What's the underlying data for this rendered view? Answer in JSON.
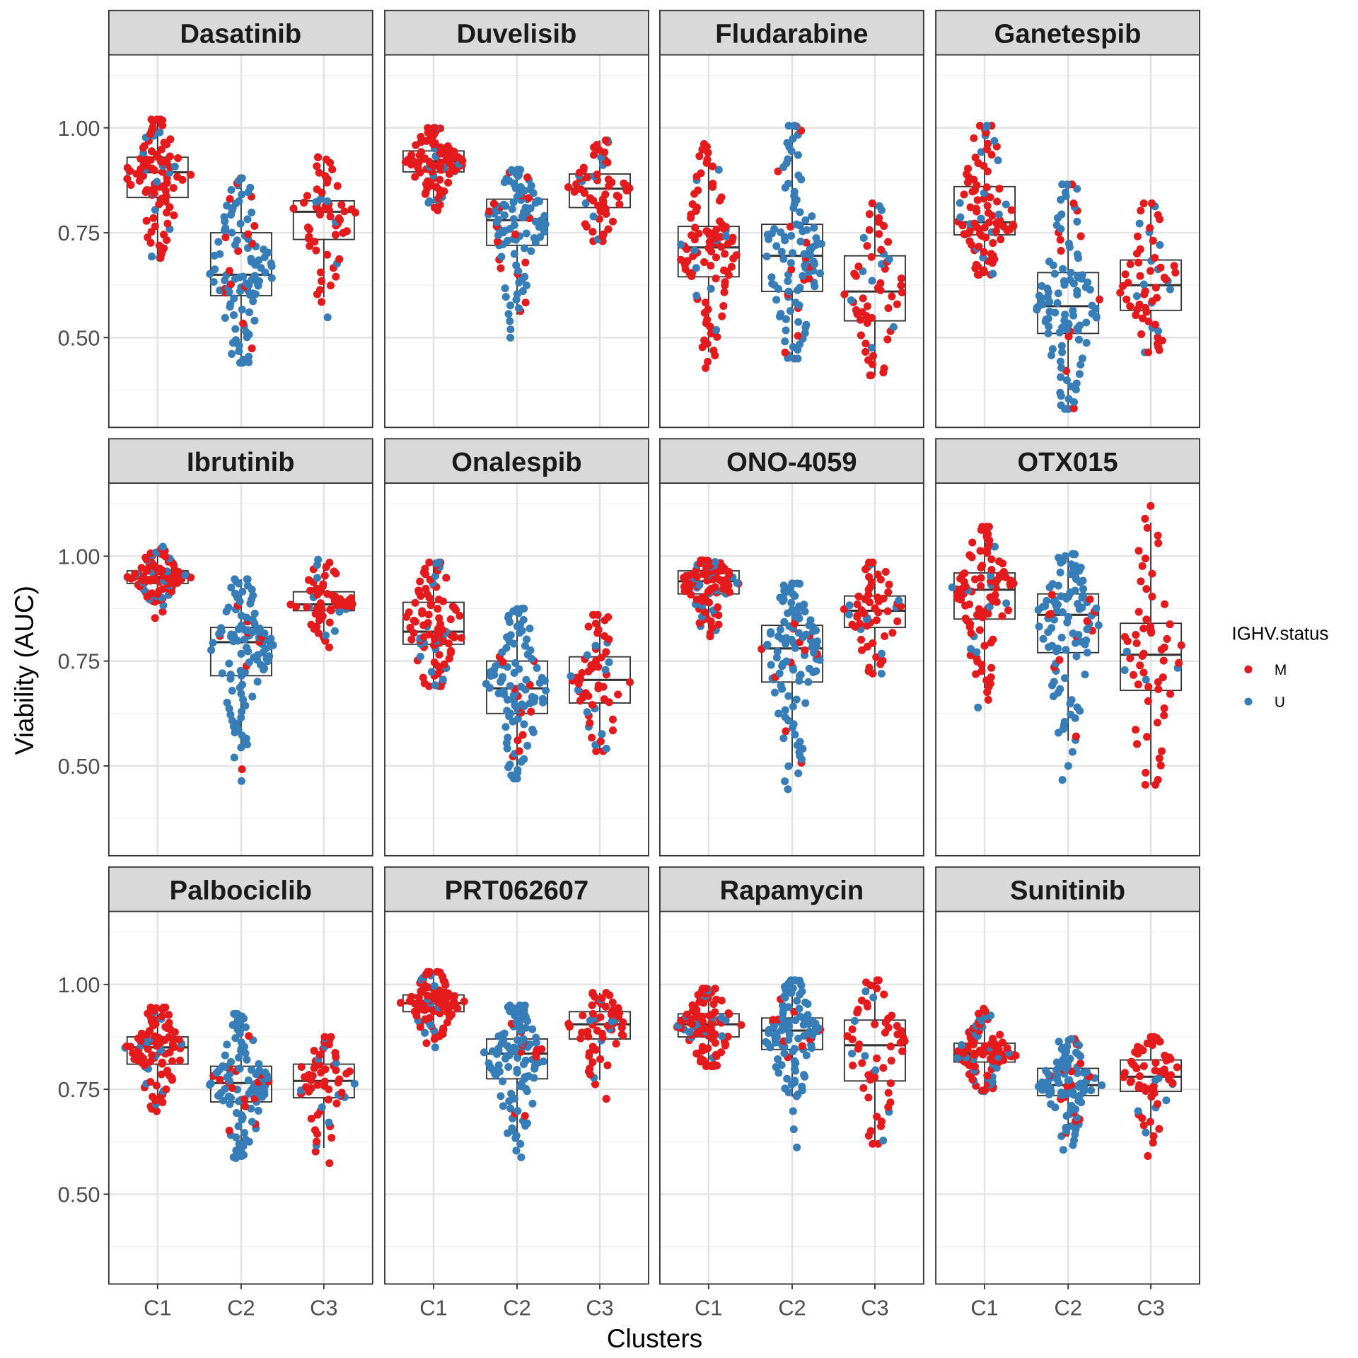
{
  "chart_data": {
    "type": "box+beeswarm (faceted)",
    "xlabel": "Clusters",
    "ylabel": "Viability (AUC)",
    "categories": [
      "C1",
      "C2",
      "C3"
    ],
    "ylim": [
      0.286,
      1.174
    ],
    "y_ticks": [
      0.5,
      0.75,
      1.0
    ],
    "y_tick_labels": [
      "0.50",
      "0.75",
      "1.00"
    ],
    "grid": true,
    "legend": {
      "title": "IGHV.status",
      "placement": "right",
      "entries": [
        {
          "label": "M",
          "color": "#E41A1C"
        },
        {
          "label": "U",
          "color": "#377EB8"
        }
      ]
    },
    "approx_points_per_cluster": [
      100,
      110,
      60
    ],
    "approx_fraction_M_per_cluster": [
      0.85,
      0.12,
      0.85
    ],
    "facets": [
      {
        "title": "Dasatinib",
        "stats": [
          [
            0.69,
            0.834,
            0.894,
            0.93,
            1.02
          ],
          [
            0.44,
            0.6,
            0.65,
            0.75,
            0.88
          ],
          [
            0.53,
            0.734,
            0.8,
            0.826,
            0.93
          ]
        ]
      },
      {
        "title": "Duvelisib",
        "stats": [
          [
            0.8,
            0.895,
            0.92,
            0.945,
            1.0
          ],
          [
            0.49,
            0.72,
            0.78,
            0.83,
            0.9
          ],
          [
            0.73,
            0.81,
            0.855,
            0.89,
            0.97
          ]
        ]
      },
      {
        "title": "Fludarabine",
        "stats": [
          [
            0.42,
            0.645,
            0.715,
            0.765,
            0.965
          ],
          [
            0.45,
            0.61,
            0.695,
            0.77,
            1.005
          ],
          [
            0.41,
            0.54,
            0.61,
            0.695,
            0.82
          ]
        ]
      },
      {
        "title": "Ganetespib",
        "stats": [
          [
            0.65,
            0.745,
            0.775,
            0.86,
            1.005
          ],
          [
            0.33,
            0.51,
            0.575,
            0.655,
            0.865
          ],
          [
            0.465,
            0.565,
            0.625,
            0.685,
            0.82
          ]
        ]
      },
      {
        "title": "Ibrutinib",
        "stats": [
          [
            0.845,
            0.935,
            0.95,
            0.965,
            1.025
          ],
          [
            0.45,
            0.715,
            0.795,
            0.83,
            0.945
          ],
          [
            0.775,
            0.87,
            0.885,
            0.915,
            0.995
          ]
        ]
      },
      {
        "title": "Onalespib",
        "stats": [
          [
            0.69,
            0.79,
            0.82,
            0.89,
            0.985
          ],
          [
            0.47,
            0.625,
            0.685,
            0.75,
            0.875
          ],
          [
            0.535,
            0.65,
            0.705,
            0.76,
            0.86
          ]
        ]
      },
      {
        "title": "ONO-4059",
        "stats": [
          [
            0.805,
            0.91,
            0.94,
            0.965,
            0.99
          ],
          [
            0.435,
            0.7,
            0.78,
            0.835,
            0.935
          ],
          [
            0.72,
            0.83,
            0.87,
            0.905,
            0.985
          ]
        ]
      },
      {
        "title": "OTX015",
        "stats": [
          [
            0.63,
            0.85,
            0.92,
            0.96,
            1.07
          ],
          [
            0.45,
            0.77,
            0.86,
            0.91,
            1.005
          ],
          [
            0.455,
            0.68,
            0.765,
            0.84,
            1.135
          ]
        ]
      },
      {
        "title": "Palbociclib",
        "stats": [
          [
            0.695,
            0.81,
            0.85,
            0.875,
            0.945
          ],
          [
            0.585,
            0.72,
            0.765,
            0.805,
            0.93
          ],
          [
            0.56,
            0.73,
            0.77,
            0.81,
            0.875
          ]
        ]
      },
      {
        "title": "PRT062607",
        "stats": [
          [
            0.845,
            0.935,
            0.955,
            0.975,
            1.03
          ],
          [
            0.58,
            0.775,
            0.835,
            0.87,
            0.95
          ],
          [
            0.71,
            0.87,
            0.905,
            0.935,
            0.98
          ]
        ]
      },
      {
        "title": "Rapamycin",
        "stats": [
          [
            0.805,
            0.875,
            0.905,
            0.93,
            0.99
          ],
          [
            0.59,
            0.845,
            0.89,
            0.92,
            1.01
          ],
          [
            0.62,
            0.77,
            0.855,
            0.915,
            1.01
          ]
        ]
      },
      {
        "title": "Sunitinib",
        "stats": [
          [
            0.745,
            0.815,
            0.835,
            0.86,
            0.945
          ],
          [
            0.6,
            0.735,
            0.76,
            0.8,
            0.87
          ],
          [
            0.575,
            0.745,
            0.78,
            0.82,
            0.875
          ]
        ]
      }
    ],
    "stats_format": "[min, q1, median, q3, max]"
  }
}
